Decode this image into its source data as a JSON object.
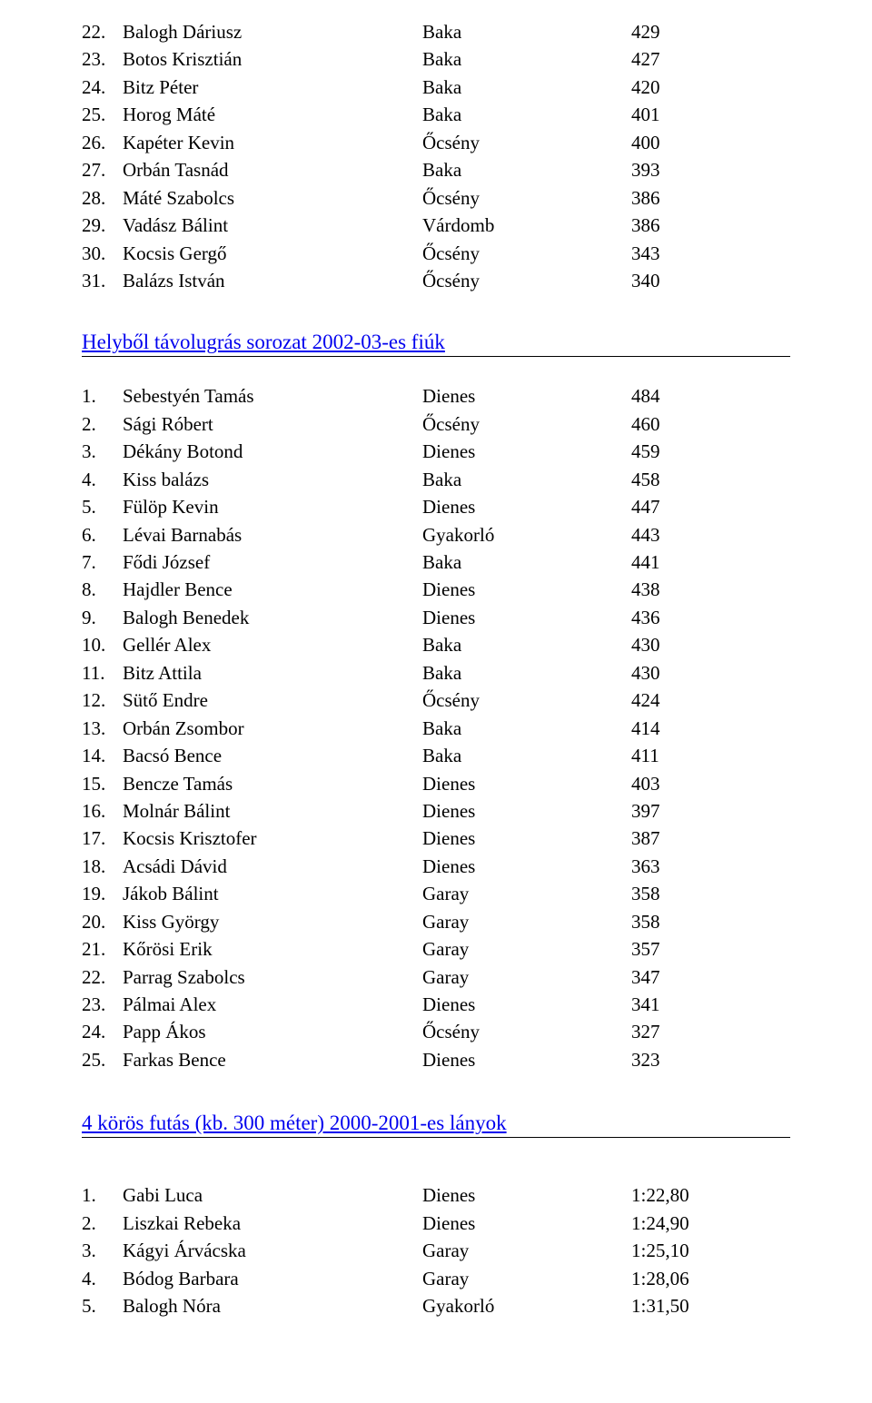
{
  "text_color": "#000000",
  "heading_color": "#0000ee",
  "background_color": "#ffffff",
  "font_family": "Times New Roman",
  "body_fontsize_pt": 16,
  "heading_fontsize_pt": 17,
  "list1": {
    "columns": [
      "rank",
      "name",
      "club",
      "score"
    ],
    "rows": [
      {
        "rank": "22.",
        "name": "Balogh Dáriusz",
        "club": "Baka",
        "score": "429"
      },
      {
        "rank": "23.",
        "name": "Botos Krisztián",
        "club": "Baka",
        "score": "427"
      },
      {
        "rank": "24.",
        "name": "Bitz Péter",
        "club": "Baka",
        "score": "420"
      },
      {
        "rank": "25.",
        "name": "Horog Máté",
        "club": "Baka",
        "score": "401"
      },
      {
        "rank": "26.",
        "name": "Kapéter Kevin",
        "club": "Őcsény",
        "score": "400"
      },
      {
        "rank": "27.",
        "name": "Orbán Tasnád",
        "club": "Baka",
        "score": "393"
      },
      {
        "rank": "28.",
        "name": "Máté Szabolcs",
        "club": "Őcsény",
        "score": "386"
      },
      {
        "rank": "29.",
        "name": "Vadász Bálint",
        "club": "Várdomb",
        "score": "386"
      },
      {
        "rank": "30.",
        "name": "Kocsis Gergő",
        "club": "Őcsény",
        "score": "343"
      },
      {
        "rank": "31.",
        "name": "Balázs István",
        "club": "Őcsény",
        "score": "340"
      }
    ]
  },
  "heading1": "Helyből távolugrás sorozat 2002-03-es fiúk",
  "list2": {
    "columns": [
      "rank",
      "name",
      "club",
      "score"
    ],
    "rows": [
      {
        "rank": "1.",
        "name": "Sebestyén Tamás",
        "club": "Dienes",
        "score": "484"
      },
      {
        "rank": "2.",
        "name": "Sági Róbert",
        "club": "Őcsény",
        "score": "460"
      },
      {
        "rank": "3.",
        "name": "Dékány Botond",
        "club": "Dienes",
        "score": "459"
      },
      {
        "rank": "4.",
        "name": "Kiss balázs",
        "club": "Baka",
        "score": "458"
      },
      {
        "rank": "5.",
        "name": "Fülöp Kevin",
        "club": "Dienes",
        "score": "447"
      },
      {
        "rank": "6.",
        "name": "Lévai Barnabás",
        "club": "Gyakorló",
        "score": "443"
      },
      {
        "rank": "7.",
        "name": "Fődi József",
        "club": "Baka",
        "score": "441"
      },
      {
        "rank": "8.",
        "name": "Hajdler Bence",
        "club": "Dienes",
        "score": "438"
      },
      {
        "rank": "9.",
        "name": "Balogh Benedek",
        "club": "Dienes",
        "score": "436"
      },
      {
        "rank": "10.",
        "name": "Gellér Alex",
        "club": "Baka",
        "score": "430"
      },
      {
        "rank": "11.",
        "name": "Bitz Attila",
        "club": "Baka",
        "score": "430"
      },
      {
        "rank": "12.",
        "name": "Sütő Endre",
        "club": "Őcsény",
        "score": "424"
      },
      {
        "rank": "13.",
        "name": "Orbán Zsombor",
        "club": "Baka",
        "score": "414"
      },
      {
        "rank": "14.",
        "name": "Bacsó Bence",
        "club": "Baka",
        "score": "411"
      },
      {
        "rank": "15.",
        "name": "Bencze Tamás",
        "club": "Dienes",
        "score": "403"
      },
      {
        "rank": "16.",
        "name": "Molnár Bálint",
        "club": "Dienes",
        "score": "397"
      },
      {
        "rank": "17.",
        "name": "Kocsis Krisztofer",
        "club": "Dienes",
        "score": "387"
      },
      {
        "rank": "18.",
        "name": "Acsádi Dávid",
        "club": "Dienes",
        "score": "363"
      },
      {
        "rank": "19.",
        "name": "Jákob Bálint",
        "club": "Garay",
        "score": "358"
      },
      {
        "rank": "20.",
        "name": "Kiss György",
        "club": "Garay",
        "score": "358"
      },
      {
        "rank": "21.",
        "name": "Kőrösi Erik",
        "club": "Garay",
        "score": "357"
      },
      {
        "rank": "22.",
        "name": "Parrag Szabolcs",
        "club": "Garay",
        "score": "347"
      },
      {
        "rank": "23.",
        "name": "Pálmai Alex",
        "club": "Dienes",
        "score": "341"
      },
      {
        "rank": "24.",
        "name": "Papp Ákos",
        "club": "Őcsény",
        "score": "327"
      },
      {
        "rank": "25.",
        "name": "Farkas Bence",
        "club": "Dienes",
        "score": "323"
      }
    ]
  },
  "heading2": "4 körös futás (kb. 300 méter) 2000-2001-es lányok",
  "list3": {
    "columns": [
      "rank",
      "name",
      "club",
      "score"
    ],
    "rows": [
      {
        "rank": "1.",
        "name": "Gabi Luca",
        "club": "Dienes",
        "score": "1:22,80"
      },
      {
        "rank": "2.",
        "name": "Liszkai Rebeka",
        "club": "Dienes",
        "score": "1:24,90"
      },
      {
        "rank": "3.",
        "name": "Kágyi Árvácska",
        "club": "Garay",
        "score": "1:25,10"
      },
      {
        "rank": "4.",
        "name": "Bódog Barbara",
        "club": "Garay",
        "score": "1:28,06"
      },
      {
        "rank": "5.",
        "name": "Balogh Nóra",
        "club": "Gyakorló",
        "score": "1:31,50"
      }
    ]
  }
}
